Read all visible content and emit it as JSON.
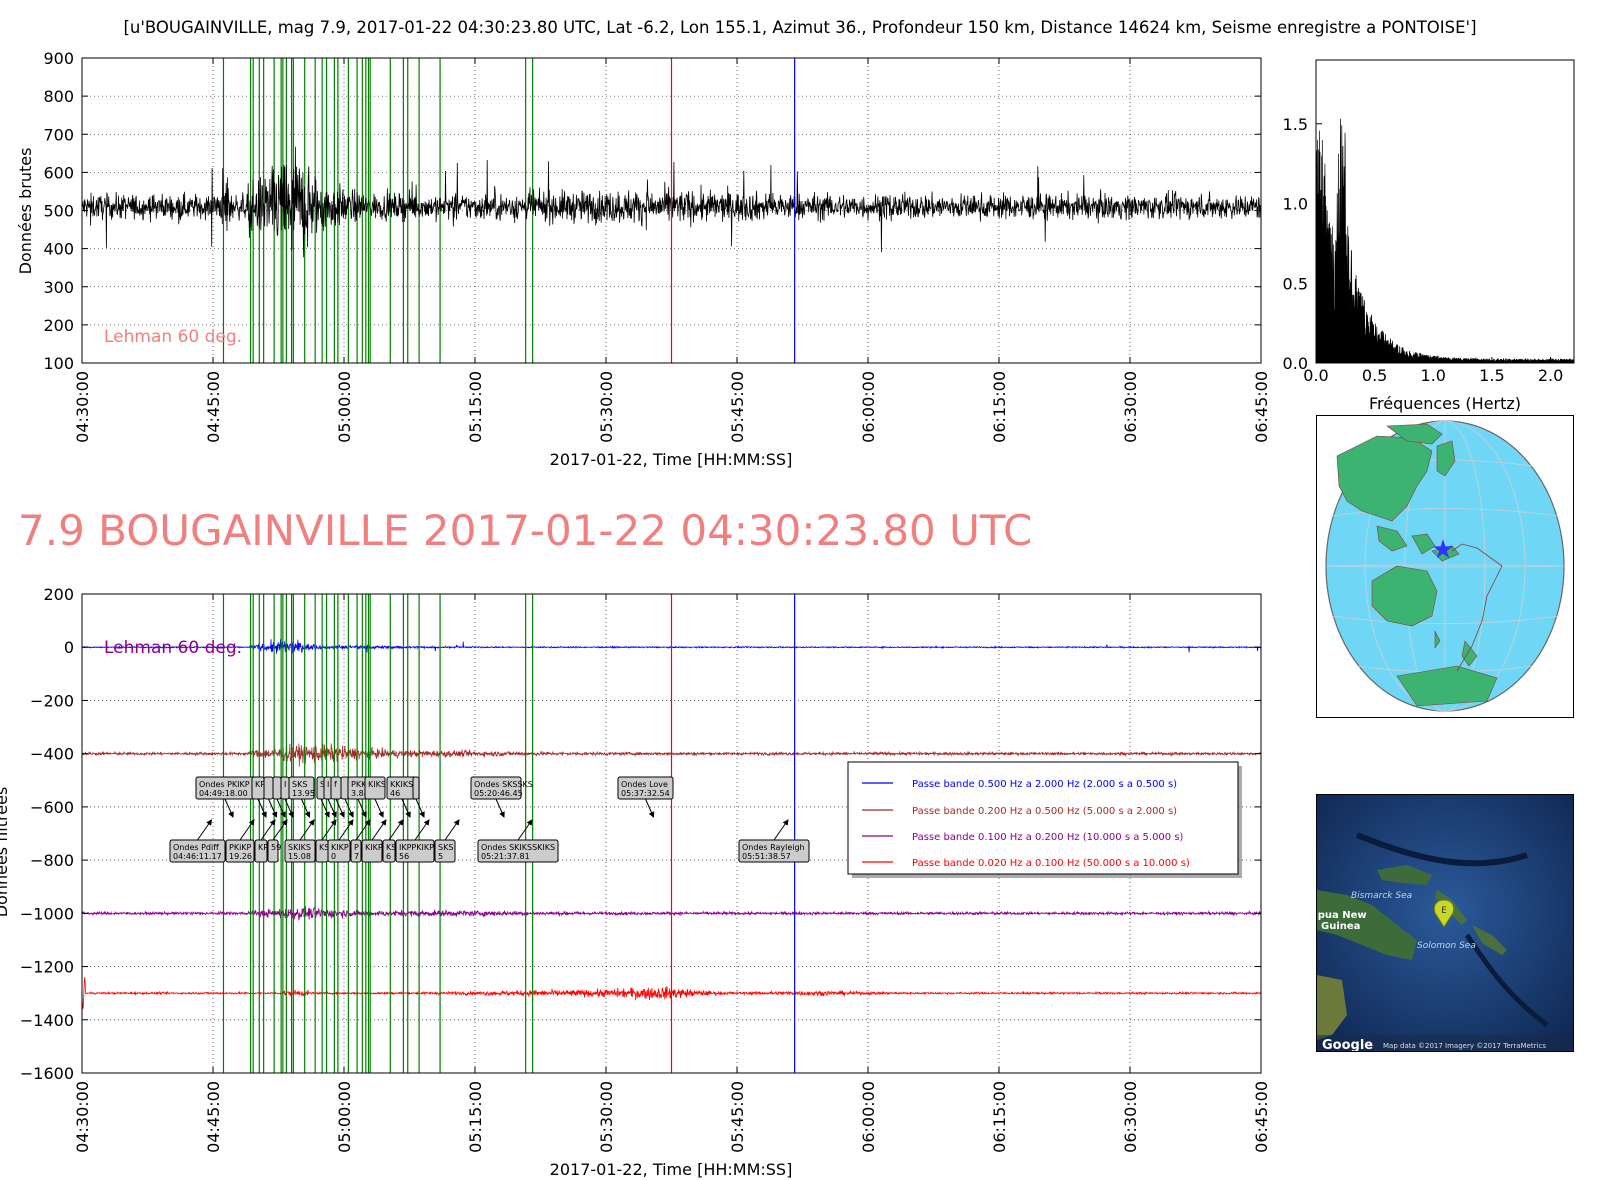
{
  "title": "[u'BOUGAINVILLE, mag 7.9, 2017-01-22 04:30:23.80 UTC, Lat -6.2, Lon 155.1, Azimut 36., Profondeur 150 km, Distance 14624 km, Seisme enregistre a PONTOISE']",
  "big_title": "7.9 BOUGAINVILLE 2017-01-22 04:30:23.80 UTC",
  "colors": {
    "raw": "#000000",
    "bp1": "#0000ff",
    "bp2": "#a52a2a",
    "bp3": "#8b008b",
    "bp4": "#ff0000",
    "phase": "#008000",
    "love": "#ff0000",
    "rayleigh": "#0000ff",
    "lehman": "#f08080"
  },
  "chart_data": [
    {
      "type": "line",
      "name": "raw",
      "ylabel": "Données brutes",
      "xlabel": "2017-01-22, Time [HH:MM:SS]",
      "xlim": [
        "04:30:00",
        "06:45:00"
      ],
      "ylim": [
        100,
        900
      ],
      "yticks": [
        100,
        200,
        300,
        400,
        500,
        600,
        700,
        800,
        900
      ],
      "xticks": [
        "04:30:00",
        "04:45:00",
        "05:00:00",
        "05:15:00",
        "05:30:00",
        "05:45:00",
        "06:00:00",
        "06:15:00",
        "06:30:00",
        "06:45:00"
      ],
      "baseline": 510,
      "annotation": "Lehman 60 deg.",
      "grid": true
    },
    {
      "type": "line",
      "name": "spectrum",
      "xlabel": "Fréquences (Hertz)",
      "xlim": [
        0.0,
        2.2
      ],
      "ylim": [
        0.0,
        1.9
      ],
      "xticks": [
        "0.0",
        "0.5",
        "1.0",
        "1.5",
        "2.0"
      ],
      "yticks": [
        "0.0",
        "0.5",
        "1.0",
        "1.5"
      ],
      "peaks": [
        [
          0.02,
          1.55
        ],
        [
          0.2,
          1.2
        ],
        [
          0.22,
          1.52
        ],
        [
          0.3,
          0.5
        ],
        [
          0.5,
          0.08
        ],
        [
          1.0,
          0.02
        ]
      ]
    },
    {
      "type": "line",
      "name": "filtered",
      "ylabel": "Données filtrées",
      "xlabel": "2017-01-22, Time [HH:MM:SS]",
      "xlim": [
        "04:30:00",
        "06:45:00"
      ],
      "ylim": [
        -1600,
        200
      ],
      "yticks": [
        200,
        0,
        -200,
        -400,
        -600,
        -800,
        -1000,
        -1200,
        -1400,
        -1600
      ],
      "yticklabels": [
        "200",
        "0",
        "−200",
        "−400",
        "−600",
        "−800",
        "−1000",
        "−1200",
        "−1400",
        "−1600"
      ],
      "xticks": [
        "04:30:00",
        "04:45:00",
        "05:00:00",
        "05:15:00",
        "05:30:00",
        "05:45:00",
        "06:00:00",
        "06:15:00",
        "06:30:00",
        "06:45:00"
      ],
      "annotation": "Lehman 60 deg.",
      "grid": true,
      "series": [
        {
          "name": "Passe bande 0.500 Hz a 2.000 Hz (2.000 s a 0.500 s)",
          "offset": 0,
          "color": "#0000ff"
        },
        {
          "name": "Passe bande 0.200 Hz a 0.500 Hz (5.000 s a 2.000 s)",
          "offset": -400,
          "color": "#a52a2a"
        },
        {
          "name": "Passe bande 0.100 Hz a 0.200 Hz (10.000 s a 5.000 s)",
          "offset": -1000,
          "color": "#8b008b"
        },
        {
          "name": "Passe bande 0.020 Hz a 0.100 Hz (50.000 s a 10.000 s)",
          "offset": -1300,
          "color": "#ff0000"
        }
      ],
      "phase_lines_min": [
        16.2,
        19.3,
        19.6,
        20.3,
        20.8,
        22.0,
        22.8,
        23.0,
        23.4,
        24.0,
        24.2,
        25.5,
        26.7,
        27.5,
        28.0,
        28.9,
        29.3,
        30.5,
        31.5,
        32.1,
        32.5,
        32.8,
        33.0,
        35.3,
        36.8,
        37.3,
        38.6,
        41.0,
        50.8,
        51.6
      ],
      "love_min": 67.5,
      "rayleigh_min": 81.6,
      "upper_boxes": [
        "Ondes PKIKP\n04:49:18.00",
        "KP",
        "",
        "",
        "I",
        "SKS\n13.95",
        "S",
        "I",
        "f",
        "",
        "PKKS\n3.88",
        "KIKS",
        "KKIKS\n46",
        "",
        "Ondes SKSSKS\n05:20:46.45",
        "Ondes Love\n05:37:32.54"
      ],
      "lower_boxes": [
        "Ondes Pdiff\n04:46:11.17",
        "PKiKP\n19.26",
        "KPP",
        "59",
        "SKIKS\n15.08",
        "KS",
        "KIKP\n0",
        "P\n7",
        "KIKP",
        "KS\n6",
        "IKPPKIKP\n56",
        "SKS\n5",
        "Ondes SKIKSSKIKS\n05:21:37.81",
        "Ondes Rayleigh\n05:51:38.57"
      ]
    }
  ],
  "map": {
    "label_sea1": "Bismarck Sea",
    "label_country": "Papua New\nGuinea",
    "label_sea2": "Solomon Sea",
    "marker": "E",
    "google": "Google",
    "attribution": "Map data ©2017  Imagery ©2017 TerraMetrics"
  }
}
